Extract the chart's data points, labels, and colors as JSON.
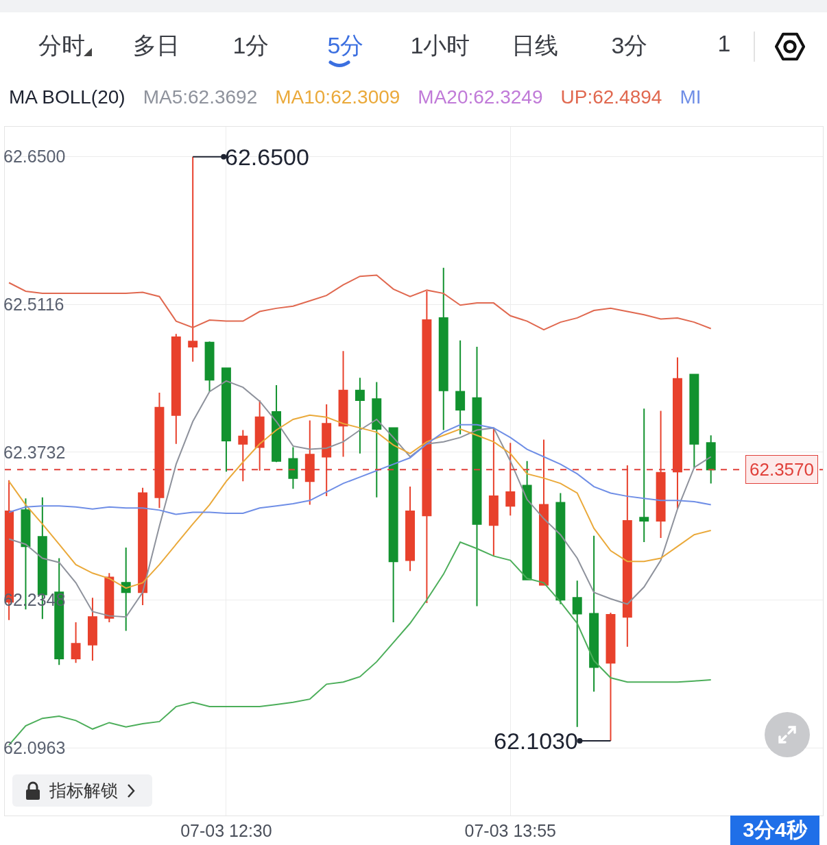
{
  "chart_data": {
    "type": "candlestick",
    "categories": [
      null,
      null,
      null,
      null,
      null,
      null,
      null,
      null,
      null,
      null,
      null,
      null,
      null,
      "07-03 12:30",
      null,
      null,
      null,
      null,
      null,
      null,
      null,
      null,
      null,
      null,
      null,
      null,
      null,
      null,
      null,
      null,
      "07-03 13:55",
      null,
      null,
      null,
      null,
      null,
      null,
      null,
      null,
      null,
      null,
      null,
      null
    ],
    "ohlc": [
      [
        62.233,
        62.347,
        62.216,
        62.318
      ],
      [
        62.319,
        62.33,
        62.226,
        62.285
      ],
      [
        62.294,
        62.331,
        62.217,
        62.24
      ],
      [
        62.242,
        62.274,
        62.174,
        62.18
      ],
      [
        62.18,
        62.214,
        62.176,
        62.194
      ],
      [
        62.193,
        62.237,
        62.178,
        62.219
      ],
      [
        62.218,
        62.26,
        62.214,
        62.256
      ],
      [
        62.251,
        62.284,
        62.206,
        62.242
      ],
      [
        62.242,
        62.34,
        62.23,
        62.335
      ],
      [
        62.331,
        62.429,
        62.321,
        62.415
      ],
      [
        62.408,
        62.484,
        62.381,
        62.481
      ],
      [
        62.472,
        62.65,
        62.458,
        62.477
      ],
      [
        62.476,
        62.477,
        62.43,
        62.441
      ],
      [
        62.452,
        62.452,
        62.355,
        62.384
      ],
      [
        62.381,
        62.394,
        62.346,
        62.388
      ],
      [
        62.378,
        62.422,
        62.356,
        62.406
      ],
      [
        62.411,
        62.436,
        62.364,
        62.365
      ],
      [
        62.367,
        62.378,
        62.339,
        62.349
      ],
      [
        62.346,
        62.403,
        62.324,
        62.371
      ],
      [
        62.369,
        62.418,
        62.332,
        62.4
      ],
      [
        62.398,
        62.468,
        62.369,
        62.431
      ],
      [
        62.431,
        62.443,
        62.372,
        62.422
      ],
      [
        62.423,
        62.439,
        62.331,
        62.395
      ],
      [
        62.396,
        62.396,
        62.214,
        62.271
      ],
      [
        62.272,
        62.341,
        62.262,
        62.318
      ],
      [
        62.314,
        62.524,
        62.232,
        62.497
      ],
      [
        62.499,
        62.546,
        62.394,
        62.431
      ],
      [
        62.43,
        62.478,
        62.39,
        62.413
      ],
      [
        62.424,
        62.472,
        62.229,
        62.306
      ],
      [
        62.305,
        62.396,
        62.276,
        62.332
      ],
      [
        62.323,
        62.382,
        62.314,
        62.336
      ],
      [
        62.342,
        62.365,
        62.254,
        62.254
      ],
      [
        62.249,
        62.385,
        62.249,
        62.324
      ],
      [
        62.326,
        62.335,
        62.231,
        62.235
      ],
      [
        62.237,
        62.253,
        62.116,
        62.222
      ],
      [
        62.222,
        62.295,
        62.149,
        62.172
      ],
      [
        62.176,
        62.223,
        62.103,
        62.221
      ],
      [
        62.219,
        62.361,
        62.191,
        62.309
      ],
      [
        62.312,
        62.414,
        62.289,
        62.309
      ],
      [
        62.309,
        62.412,
        62.293,
        62.354
      ],
      [
        62.355,
        62.462,
        62.32,
        62.442
      ],
      [
        62.446,
        62.446,
        62.358,
        62.381
      ],
      [
        62.382,
        62.389,
        62.344,
        62.357
      ]
    ],
    "colors": [
      "#e8412c",
      "#12922f",
      "#12922f",
      "#12922f",
      "#e8412c",
      "#e8412c",
      "#e8412c",
      "#12922f",
      "#e8412c",
      "#e8412c",
      "#e8412c",
      "#e8412c",
      "#12922f",
      "#12922f",
      "#e8412c",
      "#e8412c",
      "#12922f",
      "#12922f",
      "#e8412c",
      "#e8412c",
      "#e8412c",
      "#12922f",
      "#12922f",
      "#12922f",
      "#e8412c",
      "#e8412c",
      "#12922f",
      "#12922f",
      "#12922f",
      "#e8412c",
      "#e8412c",
      "#12922f",
      "#e8412c",
      "#12922f",
      "#12922f",
      "#12922f",
      "#e8412c",
      "#e8412c",
      "#12922f",
      "#e8412c",
      "#e8412c",
      "#12922f",
      "#12922f"
    ],
    "legend_title": "MA BOLL(20)",
    "series": [
      {
        "type": "line",
        "name": "MA5:62.3692",
        "color": "#8e929c",
        "values": [
          62.292,
          62.287,
          62.274,
          62.27,
          62.251,
          62.224,
          62.22,
          62.219,
          62.242,
          62.304,
          62.362,
          62.402,
          62.43,
          62.44,
          62.434,
          62.421,
          62.402,
          62.379,
          62.376,
          62.377,
          62.383,
          62.394,
          62.404,
          62.387,
          62.369,
          62.381,
          62.383,
          62.387,
          62.394,
          62.396,
          62.365,
          62.329,
          62.311,
          62.296,
          62.274,
          62.242,
          62.236,
          62.231,
          62.247,
          62.272,
          62.32,
          62.359,
          62.369
        ]
      },
      {
        "type": "line",
        "name": "MA10:62.3009",
        "color": "#eaa93a",
        "values": [
          62.346,
          62.324,
          62.306,
          62.287,
          62.268,
          62.26,
          62.255,
          62.246,
          62.251,
          62.268,
          62.287,
          62.306,
          62.324,
          62.346,
          62.364,
          62.381,
          62.394,
          62.404,
          62.408,
          62.406,
          62.4,
          62.396,
          62.392,
          62.38,
          62.372,
          62.383,
          62.389,
          62.395,
          62.389,
          62.383,
          62.372,
          62.353,
          62.349,
          62.344,
          62.335,
          62.302,
          62.281,
          62.271,
          62.271,
          62.274,
          62.285,
          62.296,
          62.3
        ]
      },
      {
        "type": "line",
        "name": "MA20:62.3249",
        "color": "#c07ad8",
        "values": [
          null,
          null,
          null,
          null,
          null,
          null,
          null,
          null,
          null,
          null,
          null,
          null,
          null,
          null,
          null,
          null,
          null,
          null,
          null,
          null,
          null,
          null,
          null,
          null,
          null,
          null,
          null,
          null,
          null,
          null,
          null,
          null,
          null,
          null,
          null,
          null,
          null,
          null,
          null,
          null,
          null,
          null,
          null
        ]
      },
      {
        "type": "line",
        "name": "UP:62.4894",
        "color": "#e0684f",
        "values": [
          62.532,
          62.524,
          62.522,
          62.522,
          62.522,
          62.522,
          62.522,
          62.522,
          62.523,
          62.519,
          62.496,
          62.49,
          62.497,
          62.496,
          62.496,
          62.505,
          62.508,
          62.51,
          62.515,
          62.52,
          62.53,
          62.538,
          62.539,
          62.526,
          62.519,
          62.525,
          62.522,
          62.511,
          62.513,
          62.513,
          62.501,
          62.496,
          62.488,
          62.495,
          62.499,
          62.506,
          62.508,
          62.505,
          62.502,
          62.498,
          62.499,
          62.495,
          62.489
        ]
      },
      {
        "type": "line",
        "name": "MI",
        "color": "#6f8ee6",
        "values": [
          62.317,
          62.322,
          62.323,
          62.323,
          62.322,
          62.32,
          62.322,
          62.321,
          62.321,
          62.319,
          62.315,
          62.317,
          62.317,
          62.316,
          62.316,
          62.321,
          62.323,
          62.325,
          62.328,
          62.336,
          62.344,
          62.35,
          62.356,
          62.362,
          62.368,
          62.381,
          62.392,
          62.399,
          62.399,
          62.396,
          62.387,
          62.376,
          62.369,
          62.362,
          62.353,
          62.341,
          62.335,
          62.332,
          62.33,
          62.328,
          62.328,
          62.327,
          62.324
        ]
      },
      {
        "type": "line",
        "color": "#4cae5a",
        "values": [
          62.099,
          62.117,
          62.124,
          62.126,
          62.122,
          62.114,
          62.12,
          62.116,
          62.119,
          62.121,
          62.135,
          62.139,
          62.135,
          62.135,
          62.135,
          62.135,
          62.137,
          62.139,
          62.142,
          62.156,
          62.158,
          62.163,
          62.177,
          62.195,
          62.213,
          62.235,
          62.259,
          62.289,
          62.283,
          62.276,
          62.272,
          62.255,
          62.251,
          62.233,
          62.213,
          62.178,
          62.162,
          62.158,
          62.158,
          62.158,
          62.158,
          62.159,
          62.16
        ]
      }
    ],
    "ylim": [
      62.033,
      62.678
    ],
    "yticks": [
      {
        "value": 62.65,
        "label": "62.6500"
      },
      {
        "value": 62.5116,
        "label": "62.5116"
      },
      {
        "value": 62.3732,
        "label": "62.3732"
      },
      {
        "value": 62.2348,
        "label": "62.2348"
      },
      {
        "value": 62.0963,
        "label": "62.0963"
      }
    ],
    "ref_lines": [
      {
        "axis": "y",
        "value": 62.357,
        "label": "62.3570",
        "color": "#e0403a",
        "line_style": "dashed"
      }
    ],
    "annotations": [
      "分时",
      "多日",
      "1分",
      "5分",
      "1小时",
      "日线",
      "3分",
      "1",
      "指标解锁",
      "3分4秒",
      "62.6500",
      "62.1030"
    ],
    "grid": true,
    "legend": "top"
  }
}
